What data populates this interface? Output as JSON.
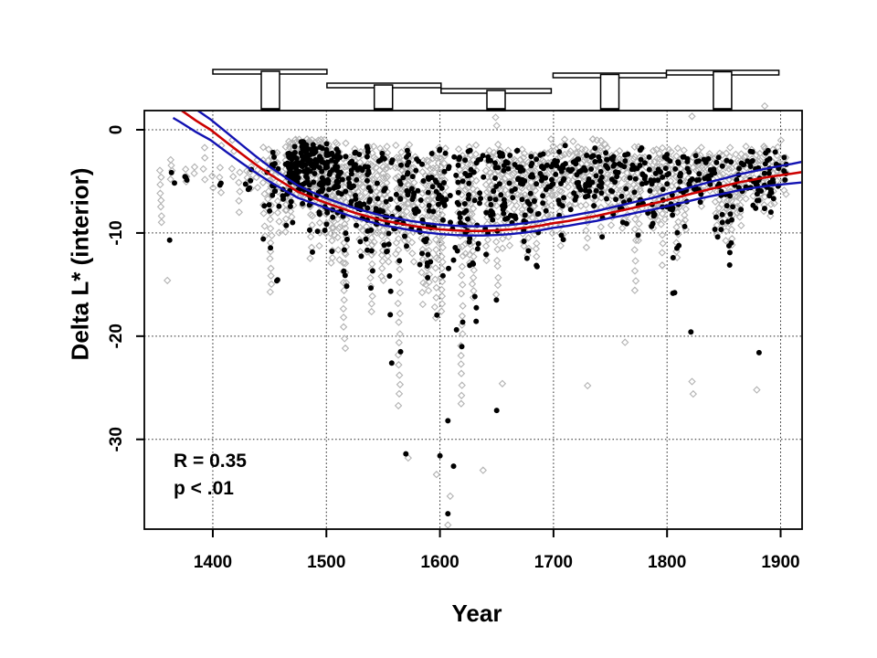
{
  "figure": {
    "xlabel": "Year",
    "ylabel": "Delta L* (interior)",
    "annotation_r": "R = 0.35",
    "annotation_p": "p < .01"
  },
  "chart_data": {
    "type": "scatter",
    "title": "",
    "xlabel": "Year",
    "ylabel": "Delta L* (interior)",
    "xlim": [
      1339.7,
      1918.9
    ],
    "ylim": [
      -38.7,
      1.86
    ],
    "x_ticks": [
      1400,
      1500,
      1600,
      1700,
      1800,
      1900
    ],
    "y_ticks": [
      0,
      -10,
      -20,
      -30
    ],
    "x_tick_labels": [
      "1400",
      "1500",
      "1600",
      "1700",
      "1800",
      "1900"
    ],
    "y_tick_labels": [
      "0",
      "-10",
      "-20",
      "-30"
    ],
    "grid": "dotted-both-axes",
    "annotations": [
      {
        "text": "R = 0.35",
        "x": 1366,
        "y": -32.5
      },
      {
        "text": "p < .01",
        "x": 1366,
        "y": -35.2
      }
    ],
    "colors": {
      "fit_line": "#cc0000",
      "confidence_band": "#1212b2",
      "points_black": "#000000",
      "points_gray": "#b2b2b2",
      "grid": "#222222"
    },
    "series": [
      {
        "name": "gray-open-diamonds",
        "marker": "diamond-open",
        "color": "#b2b2b2",
        "source": "scatter_bins + outliers_gray"
      },
      {
        "name": "black-filled-dots",
        "marker": "circle-filled",
        "color": "#000000",
        "source": "scatter_bins + outliers_black"
      }
    ],
    "scatter_bins": {
      "note": "points form vertical yearly stacks; format per bin: [year0, year1, n_columns, n_gray, n_black, typical_top, core_depth, tail_depth, tail_prob]",
      "bins": [
        [
          1352,
          1372,
          3,
          12,
          2,
          -2.5,
          -12,
          -15.5,
          0.3
        ],
        [
          1372,
          1396,
          3,
          9,
          3,
          -2.5,
          -6.5,
          -8,
          0.1
        ],
        [
          1396,
          1420,
          3,
          10,
          2,
          -3.5,
          -8,
          -9.5,
          0.1
        ],
        [
          1420,
          1444,
          4,
          16,
          5,
          -2.5,
          -9.5,
          -13,
          0.15
        ],
        [
          1444,
          1464,
          7,
          48,
          24,
          -1.5,
          -12,
          -19,
          0.15
        ],
        [
          1464,
          1488,
          11,
          130,
          120,
          -1,
          -11,
          -22,
          0.12
        ],
        [
          1488,
          1512,
          11,
          130,
          95,
          -1,
          -13,
          -25,
          0.12
        ],
        [
          1512,
          1536,
          10,
          105,
          58,
          -1.5,
          -16,
          -28,
          0.22
        ],
        [
          1536,
          1560,
          10,
          105,
          52,
          -1.5,
          -18,
          -25,
          0.22
        ],
        [
          1560,
          1584,
          10,
          100,
          48,
          -1.5,
          -19,
          -33,
          0.22
        ],
        [
          1584,
          1616,
          12,
          120,
          58,
          -1.5,
          -20,
          -38,
          0.25
        ],
        [
          1616,
          1640,
          10,
          100,
          52,
          -1.5,
          -17,
          -33,
          0.2
        ],
        [
          1640,
          1664,
          10,
          95,
          50,
          -1.5,
          -16,
          -27,
          0.2
        ],
        [
          1664,
          1688,
          10,
          90,
          48,
          -1.5,
          -14,
          -22,
          0.18
        ],
        [
          1688,
          1712,
          9,
          80,
          44,
          -1.5,
          -13,
          -20,
          0.15
        ],
        [
          1712,
          1736,
          9,
          80,
          42,
          -1.5,
          -13,
          -25,
          0.15
        ],
        [
          1736,
          1760,
          9,
          75,
          40,
          -1.5,
          -12,
          -20,
          0.13
        ],
        [
          1760,
          1784,
          9,
          68,
          38,
          -1.5,
          -12,
          -21,
          0.13
        ],
        [
          1784,
          1808,
          9,
          68,
          38,
          -1.5,
          -11,
          -18,
          0.12
        ],
        [
          1808,
          1832,
          9,
          66,
          38,
          -1.5,
          -12,
          -26,
          0.12
        ],
        [
          1832,
          1856,
          9,
          66,
          38,
          -1.5,
          -12,
          -22,
          0.12
        ],
        [
          1856,
          1880,
          9,
          62,
          36,
          -1.5,
          -12,
          -26,
          0.12
        ],
        [
          1880,
          1906,
          8,
          55,
          34,
          -1.5,
          -10,
          -22,
          0.12
        ]
      ]
    },
    "outliers_gray": [
      [
        1360,
        -14.6
      ],
      [
        1572,
        -31.8
      ],
      [
        1597,
        -33.4
      ],
      [
        1607,
        -38.3
      ],
      [
        1609,
        -35.5
      ],
      [
        1638,
        -33.0
      ],
      [
        1655,
        -24.6
      ],
      [
        1730,
        -24.8
      ],
      [
        1763,
        -20.6
      ],
      [
        1822,
        -24.4
      ],
      [
        1823,
        -25.6
      ],
      [
        1879,
        -25.2
      ],
      [
        1649,
        1.2
      ],
      [
        1650,
        0.4
      ],
      [
        1822,
        1.3
      ],
      [
        1886,
        2.3
      ]
    ],
    "outliers_black": [
      [
        1362,
        -10.7
      ],
      [
        1570,
        -31.4
      ],
      [
        1600,
        -31.6
      ],
      [
        1607,
        -37.2
      ],
      [
        1607,
        -28.2
      ],
      [
        1612,
        -32.6
      ],
      [
        1650,
        -27.2
      ],
      [
        1821,
        -19.6
      ],
      [
        1881,
        -21.6
      ]
    ],
    "fit_curve": [
      [
        1365,
        2.4
      ],
      [
        1372,
        1.9
      ],
      [
        1385,
        0.9
      ],
      [
        1398,
        0.0
      ],
      [
        1412,
        -1.2
      ],
      [
        1425,
        -2.3
      ],
      [
        1437,
        -3.3
      ],
      [
        1450,
        -4.3
      ],
      [
        1463,
        -5.2
      ],
      [
        1475,
        -6.0
      ],
      [
        1488,
        -6.6
      ],
      [
        1500,
        -7.1
      ],
      [
        1513,
        -7.6
      ],
      [
        1525,
        -8.05
      ],
      [
        1538,
        -8.45
      ],
      [
        1550,
        -8.8
      ],
      [
        1563,
        -9.05
      ],
      [
        1575,
        -9.3
      ],
      [
        1588,
        -9.5
      ],
      [
        1600,
        -9.65
      ],
      [
        1613,
        -9.75
      ],
      [
        1625,
        -9.8
      ],
      [
        1638,
        -9.8
      ],
      [
        1650,
        -9.75
      ],
      [
        1663,
        -9.65
      ],
      [
        1675,
        -9.5
      ],
      [
        1688,
        -9.3
      ],
      [
        1700,
        -9.05
      ],
      [
        1713,
        -8.85
      ],
      [
        1725,
        -8.6
      ],
      [
        1738,
        -8.35
      ],
      [
        1750,
        -8.05
      ],
      [
        1763,
        -7.75
      ],
      [
        1775,
        -7.45
      ],
      [
        1788,
        -7.15
      ],
      [
        1800,
        -6.8
      ],
      [
        1813,
        -6.45
      ],
      [
        1825,
        -6.1
      ],
      [
        1838,
        -5.75
      ],
      [
        1850,
        -5.45
      ],
      [
        1863,
        -5.1
      ],
      [
        1875,
        -4.85
      ],
      [
        1888,
        -4.6
      ],
      [
        1900,
        -4.4
      ],
      [
        1910,
        -4.25
      ],
      [
        1919,
        -4.1
      ]
    ],
    "band_offsets": [
      1.25,
      1.2,
      1.1,
      1.0,
      0.95,
      0.88,
      0.8,
      0.72,
      0.65,
      0.6,
      0.52,
      0.47,
      0.45,
      0.45,
      0.45,
      0.45,
      0.45,
      0.45,
      0.45,
      0.45,
      0.45,
      0.45,
      0.45,
      0.45,
      0.45,
      0.45,
      0.45,
      0.45,
      0.46,
      0.47,
      0.48,
      0.5,
      0.52,
      0.54,
      0.57,
      0.6,
      0.63,
      0.66,
      0.7,
      0.73,
      0.77,
      0.8,
      0.85,
      0.9,
      0.95,
      1.0
    ],
    "top_markers": [
      {
        "span": [
          1400.0,
          1500.5
        ],
        "center": 1450.7,
        "bar_y": 76,
        "box_y": 78
      },
      {
        "span": [
          1500.5,
          1601.0
        ],
        "center": 1550.2,
        "bar_y": 91,
        "box_y": 93
      },
      {
        "span": [
          1601.0,
          1698.0
        ],
        "center": 1649.4,
        "bar_y": 97,
        "box_y": 99
      },
      {
        "span": [
          1699.6,
          1799.4
        ],
        "center": 1749.6,
        "bar_y": 80,
        "box_y": 81.5
      },
      {
        "span": [
          1799.4,
          1898.4
        ],
        "center": 1848.8,
        "bar_y": 77,
        "box_y": 78.5
      }
    ],
    "seed": 9
  }
}
